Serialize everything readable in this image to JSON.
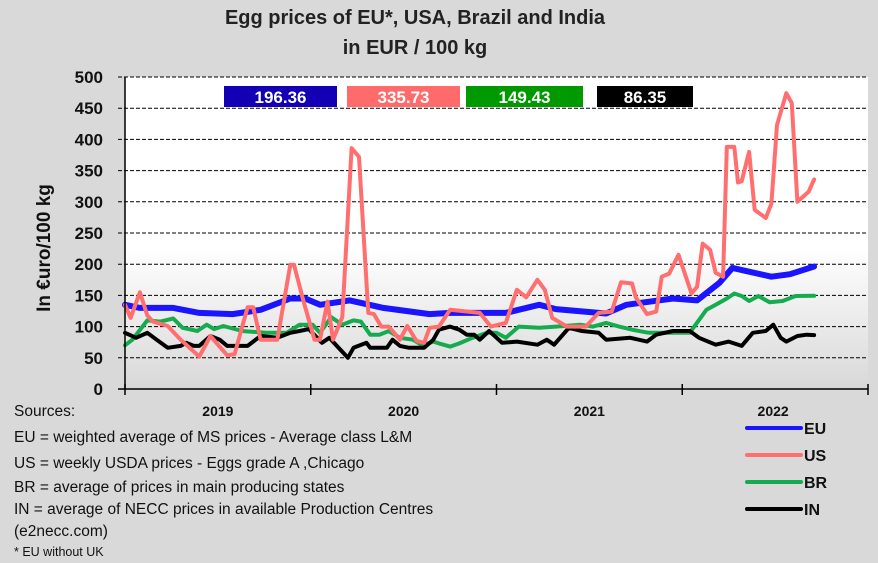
{
  "chart_data": {
    "type": "line",
    "title": [
      "Egg prices of EU*, USA, Brazil and India",
      "in EUR / 100 kg"
    ],
    "ylabel": "In €uro/100 kg",
    "xlabel": "",
    "ylim": [
      0,
      500
    ],
    "yticks": [
      0,
      50,
      100,
      150,
      200,
      250,
      300,
      350,
      400,
      450,
      500
    ],
    "xlim": [
      2019,
      2023
    ],
    "xtick_labels": [
      "2019",
      "2020",
      "2021",
      "2022"
    ],
    "grid": "horizontal dashed",
    "legend_position": "bottom-right",
    "latest_values": [
      {
        "series": "EU",
        "value": "196.36",
        "color": "#1400b4"
      },
      {
        "series": "US",
        "value": "335.73",
        "color": "#ff6b6b"
      },
      {
        "series": "BR",
        "value": "149.43",
        "color": "#009900"
      },
      {
        "series": "IN",
        "value": "86.35",
        "color": "#000000"
      }
    ],
    "series": [
      {
        "name": "EU",
        "color": "#1a14ff",
        "width": 6,
        "points": [
          [
            2019.0,
            135
          ],
          [
            2019.08,
            130
          ],
          [
            2019.26,
            130
          ],
          [
            2019.4,
            122
          ],
          [
            2019.58,
            120
          ],
          [
            2019.73,
            127
          ],
          [
            2019.89,
            145
          ],
          [
            2019.97,
            145
          ],
          [
            2020.05,
            135
          ],
          [
            2020.21,
            142
          ],
          [
            2020.39,
            130
          ],
          [
            2020.64,
            120
          ],
          [
            2020.75,
            122
          ],
          [
            2021.05,
            122
          ],
          [
            2021.23,
            135
          ],
          [
            2021.32,
            128
          ],
          [
            2021.59,
            121
          ],
          [
            2021.7,
            135
          ],
          [
            2021.95,
            145
          ],
          [
            2022.08,
            142
          ],
          [
            2022.2,
            170
          ],
          [
            2022.27,
            194
          ],
          [
            2022.48,
            180
          ],
          [
            2022.58,
            184
          ],
          [
            2022.71,
            196.36
          ]
        ]
      },
      {
        "name": "US",
        "color": "#ff6f6f",
        "width": 4,
        "points": [
          [
            2019.0,
            135
          ],
          [
            2019.03,
            114
          ],
          [
            2019.08,
            155
          ],
          [
            2019.12,
            118
          ],
          [
            2019.15,
            108
          ],
          [
            2019.23,
            101
          ],
          [
            2019.3,
            79
          ],
          [
            2019.4,
            52
          ],
          [
            2019.46,
            85
          ],
          [
            2019.55,
            54
          ],
          [
            2019.59,
            56
          ],
          [
            2019.66,
            131
          ],
          [
            2019.69,
            131
          ],
          [
            2019.73,
            79
          ],
          [
            2019.82,
            79
          ],
          [
            2019.89,
            199
          ],
          [
            2019.91,
            199
          ],
          [
            2019.96,
            142
          ],
          [
            2020.02,
            79
          ],
          [
            2020.05,
            79
          ],
          [
            2020.09,
            140
          ],
          [
            2020.12,
            79
          ],
          [
            2020.17,
            115
          ],
          [
            2020.22,
            386
          ],
          [
            2020.26,
            372
          ],
          [
            2020.31,
            122
          ],
          [
            2020.34,
            120
          ],
          [
            2020.38,
            100
          ],
          [
            2020.42,
            100
          ],
          [
            2020.48,
            79
          ],
          [
            2020.52,
            101
          ],
          [
            2020.57,
            77
          ],
          [
            2020.61,
            74
          ],
          [
            2020.64,
            98
          ],
          [
            2020.69,
            100
          ],
          [
            2020.75,
            127
          ],
          [
            2020.91,
            122
          ],
          [
            2020.97,
            100
          ],
          [
            2021.05,
            106
          ],
          [
            2021.11,
            159
          ],
          [
            2021.16,
            147
          ],
          [
            2021.22,
            175
          ],
          [
            2021.26,
            159
          ],
          [
            2021.3,
            114
          ],
          [
            2021.38,
            100
          ],
          [
            2021.48,
            100
          ],
          [
            2021.55,
            122
          ],
          [
            2021.62,
            124
          ],
          [
            2021.67,
            171
          ],
          [
            2021.73,
            169
          ],
          [
            2021.75,
            147
          ],
          [
            2021.81,
            120
          ],
          [
            2021.86,
            124
          ],
          [
            2021.89,
            180
          ],
          [
            2021.93,
            185
          ],
          [
            2021.98,
            215
          ],
          [
            2022.05,
            153
          ],
          [
            2022.08,
            164
          ],
          [
            2022.11,
            233
          ],
          [
            2022.15,
            223
          ],
          [
            2022.18,
            186
          ],
          [
            2022.22,
            180
          ],
          [
            2022.24,
            388
          ],
          [
            2022.28,
            388
          ],
          [
            2022.3,
            331
          ],
          [
            2022.32,
            333
          ],
          [
            2022.36,
            380
          ],
          [
            2022.39,
            287
          ],
          [
            2022.45,
            274
          ],
          [
            2022.48,
            297
          ],
          [
            2022.51,
            423
          ],
          [
            2022.56,
            474
          ],
          [
            2022.59,
            458
          ],
          [
            2022.62,
            300
          ],
          [
            2022.68,
            316
          ],
          [
            2022.71,
            335.73
          ]
        ]
      },
      {
        "name": "BR",
        "color": "#17ab4f",
        "width": 4,
        "points": [
          [
            2019.0,
            70
          ],
          [
            2019.04,
            79
          ],
          [
            2019.12,
            110
          ],
          [
            2019.19,
            108
          ],
          [
            2019.26,
            113
          ],
          [
            2019.31,
            98
          ],
          [
            2019.39,
            93
          ],
          [
            2019.44,
            103
          ],
          [
            2019.48,
            96
          ],
          [
            2019.53,
            101
          ],
          [
            2019.63,
            93
          ],
          [
            2019.76,
            90
          ],
          [
            2019.87,
            90
          ],
          [
            2019.94,
            103
          ],
          [
            2020.01,
            103
          ],
          [
            2020.05,
            90
          ],
          [
            2020.11,
            115
          ],
          [
            2020.17,
            103
          ],
          [
            2020.23,
            110
          ],
          [
            2020.27,
            108
          ],
          [
            2020.32,
            87
          ],
          [
            2020.37,
            87
          ],
          [
            2020.42,
            93
          ],
          [
            2020.48,
            82
          ],
          [
            2020.55,
            79
          ],
          [
            2020.6,
            70
          ],
          [
            2020.66,
            76
          ],
          [
            2020.69,
            73
          ],
          [
            2020.75,
            68
          ],
          [
            2020.8,
            73
          ],
          [
            2020.87,
            82
          ],
          [
            2020.95,
            90
          ],
          [
            2021.0,
            90
          ],
          [
            2021.05,
            82
          ],
          [
            2021.12,
            100
          ],
          [
            2021.23,
            98
          ],
          [
            2021.32,
            100
          ],
          [
            2021.45,
            103
          ],
          [
            2021.52,
            100
          ],
          [
            2021.59,
            106
          ],
          [
            2021.66,
            100
          ],
          [
            2021.73,
            95
          ],
          [
            2021.82,
            90
          ],
          [
            2021.95,
            90
          ],
          [
            2022.04,
            90
          ],
          [
            2022.13,
            127
          ],
          [
            2022.18,
            135
          ],
          [
            2022.24,
            145
          ],
          [
            2022.28,
            153
          ],
          [
            2022.32,
            149
          ],
          [
            2022.36,
            141
          ],
          [
            2022.41,
            149
          ],
          [
            2022.47,
            139
          ],
          [
            2022.54,
            141
          ],
          [
            2022.61,
            149
          ],
          [
            2022.71,
            149.43
          ]
        ]
      },
      {
        "name": "IN",
        "color": "#000000",
        "width": 4,
        "points": [
          [
            2019.0,
            90
          ],
          [
            2019.06,
            82
          ],
          [
            2019.12,
            90
          ],
          [
            2019.17,
            79
          ],
          [
            2019.23,
            66
          ],
          [
            2019.3,
            69
          ],
          [
            2019.33,
            74
          ],
          [
            2019.37,
            69
          ],
          [
            2019.4,
            69
          ],
          [
            2019.46,
            85
          ],
          [
            2019.51,
            79
          ],
          [
            2019.55,
            69
          ],
          [
            2019.66,
            69
          ],
          [
            2019.73,
            85
          ],
          [
            2019.82,
            82
          ],
          [
            2019.89,
            90
          ],
          [
            2019.94,
            93
          ],
          [
            2019.99,
            96
          ],
          [
            2020.06,
            74
          ],
          [
            2020.1,
            82
          ],
          [
            2020.14,
            69
          ],
          [
            2020.2,
            50
          ],
          [
            2020.23,
            66
          ],
          [
            2020.3,
            74
          ],
          [
            2020.32,
            66
          ],
          [
            2020.41,
            66
          ],
          [
            2020.44,
            79
          ],
          [
            2020.48,
            69
          ],
          [
            2020.53,
            66
          ],
          [
            2020.61,
            66
          ],
          [
            2020.66,
            79
          ],
          [
            2020.69,
            95
          ],
          [
            2020.75,
            100
          ],
          [
            2020.8,
            95
          ],
          [
            2020.84,
            87
          ],
          [
            2020.88,
            87
          ],
          [
            2020.91,
            79
          ],
          [
            2020.96,
            93
          ],
          [
            2021.03,
            74
          ],
          [
            2021.11,
            76
          ],
          [
            2021.22,
            71
          ],
          [
            2021.27,
            79
          ],
          [
            2021.31,
            71
          ],
          [
            2021.39,
            98
          ],
          [
            2021.46,
            93
          ],
          [
            2021.55,
            90
          ],
          [
            2021.59,
            79
          ],
          [
            2021.72,
            82
          ],
          [
            2021.81,
            76
          ],
          [
            2021.86,
            87
          ],
          [
            2021.95,
            93
          ],
          [
            2022.04,
            93
          ],
          [
            2022.09,
            82
          ],
          [
            2022.18,
            71
          ],
          [
            2022.25,
            76
          ],
          [
            2022.32,
            69
          ],
          [
            2022.38,
            90
          ],
          [
            2022.45,
            93
          ],
          [
            2022.49,
            103
          ],
          [
            2022.53,
            82
          ],
          [
            2022.56,
            76
          ],
          [
            2022.62,
            85
          ],
          [
            2022.67,
            87
          ],
          [
            2022.71,
            86.35
          ]
        ]
      }
    ]
  },
  "sources": {
    "heading": "Sources:",
    "lines": [
      "EU =  weighted average of MS prices  -  Average class  L&M",
      "US =  weekly USDA prices  -  Eggs grade A ,Chicago",
      "BR =  average of prices in main producing states",
      "IN =  average of NECC prices in available  Production Centres",
      "(e2necc.com)"
    ],
    "footnote": "* EU without UK"
  }
}
